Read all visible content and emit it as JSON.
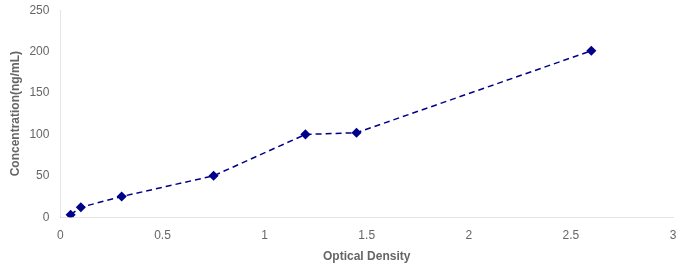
{
  "chart_data": {
    "type": "line",
    "x": [
      0.05,
      0.1,
      0.3,
      0.75,
      1.2,
      1.45,
      2.6
    ],
    "values": [
      3,
      12,
      25,
      50,
      100,
      102,
      201
    ],
    "color": "#00008B",
    "marker": "diamond",
    "line_style": "dashed",
    "xlabel": "Optical Density",
    "ylabel": "Concentration(ng/mL)",
    "xlim": [
      0,
      3
    ],
    "ylim": [
      0,
      250
    ],
    "xticks": [
      0,
      0.5,
      1,
      1.5,
      2,
      2.5,
      3
    ],
    "yticks": [
      0,
      50,
      100,
      150,
      200,
      250
    ],
    "grid": false
  }
}
